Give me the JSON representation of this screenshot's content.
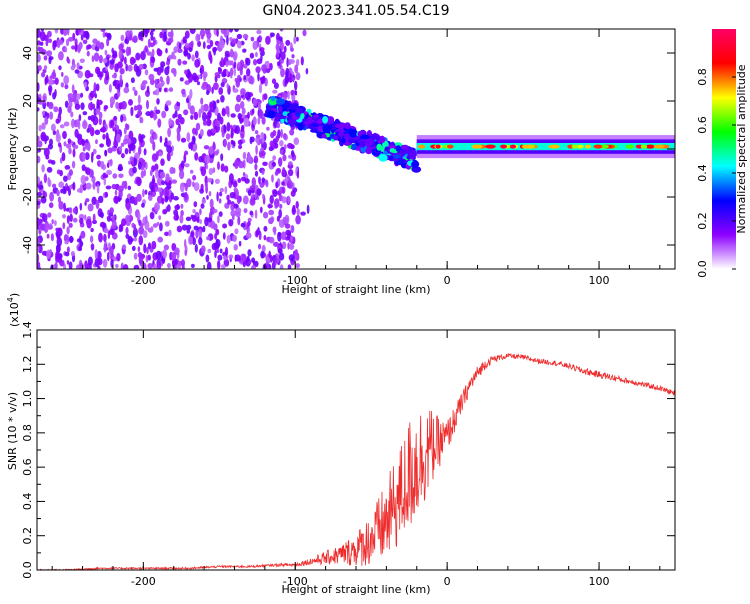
{
  "figure": {
    "title": "GN04.2023.341.05.54.C19"
  },
  "chart_data": [
    {
      "type": "heatmap",
      "title": "",
      "xlabel": "Height of straight line (km)",
      "ylabel": "Frequency (Hz)",
      "xlim": [
        -270,
        150
      ],
      "ylim": [
        -50,
        50
      ],
      "x_ticks": [
        -200,
        -100,
        0,
        100
      ],
      "x_tick_labels": [
        "-200",
        "-100",
        "0",
        "100"
      ],
      "y_ticks": [
        -40,
        -20,
        0,
        20,
        40
      ],
      "y_tick_labels": [
        "-40",
        "-20",
        "0",
        "20",
        "40"
      ],
      "grid": false,
      "colorbar": {
        "label": "Normalized spectral amplitude",
        "range": [
          0,
          1
        ],
        "ticks": [
          0.0,
          0.2,
          0.4,
          0.6,
          0.8
        ],
        "tick_labels": [
          "0.0",
          "0.2",
          "0.4",
          "0.6",
          "0.8"
        ],
        "colors": [
          "#ffffff",
          "#8c00ff",
          "#0000ff",
          "#00ffff",
          "#00ff00",
          "#ffff00",
          "#ff0000",
          "#ff0066"
        ]
      },
      "regions": [
        {
          "name": "scattered noise",
          "x_range": [
            -270,
            -98
          ],
          "y_range": [
            -50,
            50
          ],
          "amplitude": 0.15
        },
        {
          "name": "descending signal",
          "x_range": [
            -118,
            -20
          ],
          "y_range": [
            -5,
            18
          ],
          "amplitude": 0.55
        },
        {
          "name": "steady band",
          "x_range": [
            -20,
            150
          ],
          "y_center": 1,
          "half_width": 3,
          "amplitude": 0.7
        }
      ]
    },
    {
      "type": "line",
      "title": "",
      "xlabel": "Height of straight line (km)",
      "ylabel": "SNR (10 * v/v)",
      "multiplier_label": "(x10",
      "multiplier_exponent": "4",
      "multiplier_close": ")",
      "xlim": [
        -270,
        150
      ],
      "ylim": [
        0.0,
        1.4
      ],
      "x_ticks": [
        -200,
        -100,
        0,
        100
      ],
      "x_tick_labels": [
        "-200",
        "-100",
        "0",
        "100"
      ],
      "y_ticks": [
        0.0,
        0.2,
        0.4,
        0.6,
        0.8,
        1.0,
        1.2,
        1.4
      ],
      "y_tick_labels": [
        "0.0",
        "0.2",
        "0.4",
        "0.6",
        "0.8",
        "1.0",
        "1.2",
        "1.4"
      ],
      "grid": false,
      "color": "#ee2c2c",
      "series": [
        {
          "x": [
            -270,
            -250,
            -230,
            -210,
            -190,
            -170,
            -150,
            -130,
            -110,
            -100,
            -90,
            -80,
            -70,
            -60,
            -50,
            -40,
            -30,
            -25,
            -20,
            -15,
            -10,
            -5,
            0,
            5,
            10,
            15,
            20,
            25,
            30,
            40,
            50,
            60,
            70,
            80,
            90,
            100,
            110,
            120,
            130,
            140,
            150
          ],
          "values": [
            0.0,
            0.0,
            0.01,
            0.01,
            0.01,
            0.01,
            0.02,
            0.02,
            0.03,
            0.03,
            0.05,
            0.07,
            0.09,
            0.12,
            0.18,
            0.28,
            0.45,
            0.55,
            0.62,
            0.68,
            0.72,
            0.74,
            0.78,
            0.88,
            0.98,
            1.08,
            1.15,
            1.2,
            1.23,
            1.25,
            1.24,
            1.22,
            1.21,
            1.19,
            1.16,
            1.14,
            1.12,
            1.1,
            1.08,
            1.06,
            1.03
          ],
          "spread": [
            0.005,
            0.005,
            0.005,
            0.005,
            0.005,
            0.005,
            0.006,
            0.006,
            0.008,
            0.01,
            0.02,
            0.04,
            0.06,
            0.1,
            0.16,
            0.24,
            0.3,
            0.34,
            0.34,
            0.3,
            0.22,
            0.14,
            0.1,
            0.08,
            0.06,
            0.05,
            0.04,
            0.03,
            0.02,
            0.015,
            0.015,
            0.015,
            0.015,
            0.015,
            0.02,
            0.02,
            0.02,
            0.015,
            0.015,
            0.015,
            0.015
          ]
        }
      ]
    }
  ]
}
